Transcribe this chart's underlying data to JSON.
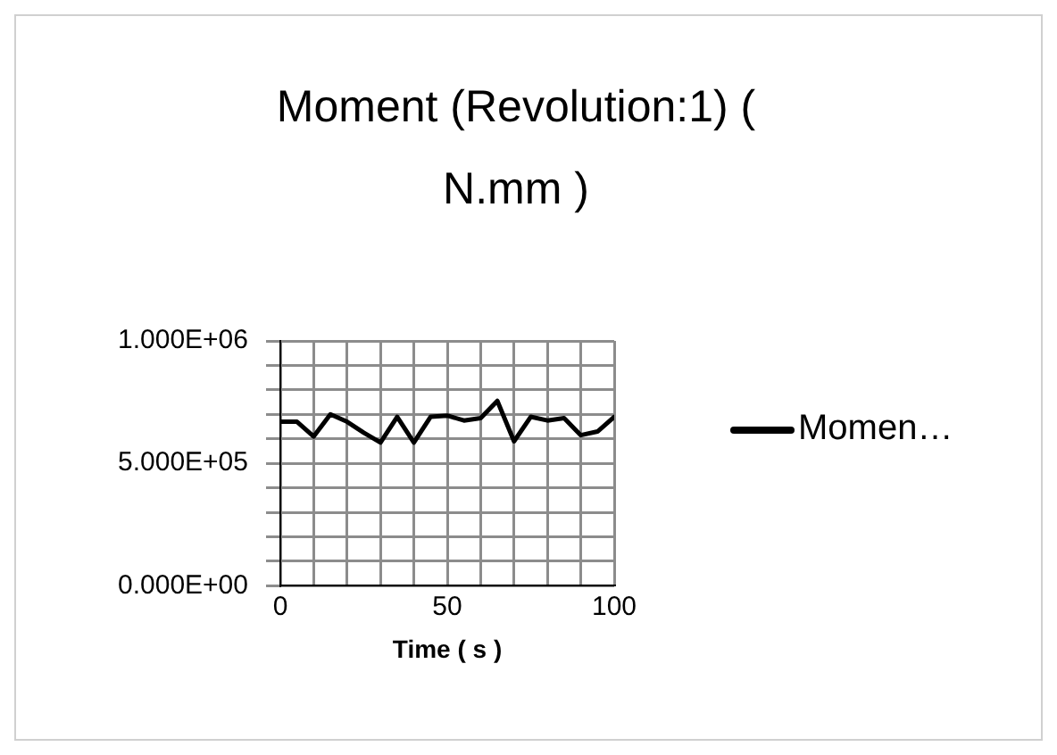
{
  "chart_data": {
    "type": "line",
    "title": "Moment (Revolution:1) ( N.mm )",
    "xlabel": "Time ( s )",
    "x": [
      0,
      5,
      10,
      15,
      20,
      25,
      30,
      35,
      40,
      45,
      50,
      55,
      60,
      65,
      70,
      75,
      80,
      85,
      90,
      95,
      100
    ],
    "series": [
      {
        "name": "Momen…",
        "color": "#000000",
        "values": [
          670000,
          670000,
          610000,
          700000,
          670000,
          625000,
          585000,
          690000,
          585000,
          690000,
          695000,
          675000,
          685000,
          755000,
          590000,
          690000,
          675000,
          685000,
          615000,
          630000,
          690000
        ]
      }
    ],
    "xlim": [
      0,
      100
    ],
    "xticks": [
      0,
      {
        "value": 10,
        "label": null
      },
      {
        "value": 20,
        "label": null
      },
      {
        "value": 30,
        "label": null
      },
      {
        "value": 40,
        "label": null
      },
      50,
      {
        "value": 60,
        "label": null
      },
      {
        "value": 70,
        "label": null
      },
      {
        "value": 80,
        "label": null
      },
      {
        "value": 90,
        "label": null
      },
      100
    ],
    "ylim": [
      0,
      1000000
    ],
    "yticks": [
      {
        "value": 0,
        "label": "0.000E+00"
      },
      {
        "value": 100000,
        "label": null
      },
      {
        "value": 200000,
        "label": null
      },
      {
        "value": 300000,
        "label": null
      },
      {
        "value": 400000,
        "label": null
      },
      {
        "value": 500000,
        "label": "5.000E+05"
      },
      {
        "value": 600000,
        "label": null
      },
      {
        "value": 700000,
        "label": null
      },
      {
        "value": 800000,
        "label": null
      },
      {
        "value": 900000,
        "label": null
      },
      {
        "value": 1000000,
        "label": "1.000E+06"
      }
    ],
    "grid": true,
    "legend": "right",
    "marker": "none",
    "line_style": "solid"
  }
}
